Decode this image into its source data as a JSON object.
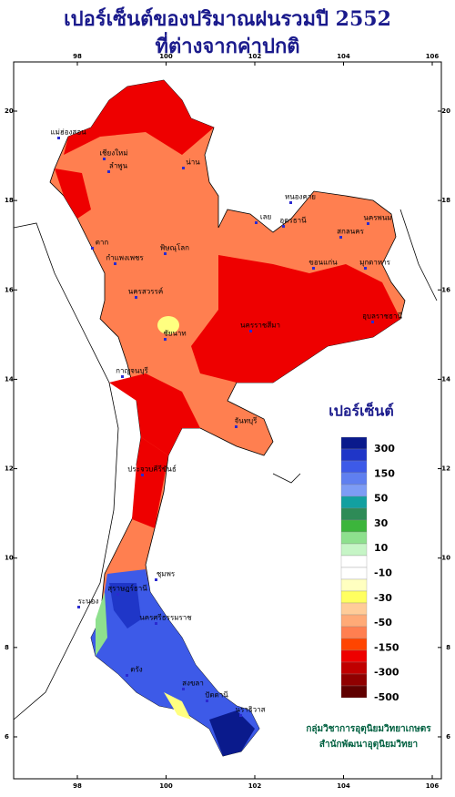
{
  "header": {
    "title": "เปอร์เซ็นต์ของปริมาณฝนรวมปี  2552",
    "subtitle": "ที่ต่างจากค่าปกติ"
  },
  "map": {
    "lon_ticks": [
      98,
      100,
      102,
      104,
      106
    ],
    "lat_ticks": [
      6,
      8,
      10,
      12,
      14,
      16,
      18,
      20
    ],
    "provinces": [
      "แม่ฮ่องสอน",
      "เชียงใหม่",
      "ลำพูน",
      "น่าน",
      "หนองคาย",
      "เลย",
      "อุดรธานี",
      "สกลนคร",
      "นครพนม",
      "ตาก",
      "กำแพงเพชร",
      "พิษณุโลก",
      "ขอนแก่น",
      "มุกดาหาร",
      "นครสวรรค์",
      "ชัยนาท",
      "นครราชสีมา",
      "อุบลราชธานี",
      "กาญจนบุรี",
      "จันทบุรี",
      "ประจวบคีรีขันธ์",
      "ชุมพร",
      "ระนอง",
      "สุราษฎร์ธานี",
      "นครศรีธรรมราช",
      "ตรัง",
      "สงขลา",
      "ปัตตานี",
      "นราธิวาส"
    ],
    "legend": {
      "title": "เปอร์เซ็นต์",
      "levels": [
        300,
        150,
        50,
        30,
        10,
        -10,
        -30,
        -50,
        -150,
        -300,
        -500
      ],
      "colors": [
        "#0a1a8c",
        "#1f36c8",
        "#3d5ae8",
        "#5f7ff0",
        "#7d9cf5",
        "#12a0a0",
        "#2e8b57",
        "#3cb53c",
        "#8ee08e",
        "#c6f5c6",
        "#ffffff",
        "#ffffff",
        "#ffffc0",
        "#ffff60",
        "#ffcc99",
        "#ffaa77",
        "#ff7f50",
        "#ff4500",
        "#ee0000",
        "#c00000",
        "#900000",
        "#600000"
      ]
    }
  },
  "credit": {
    "line1": "กลุ่มวิชาการอุตุนิยมวิทยาเกษตร",
    "line2": "สำนักพัฒนาอุตุนิยมวิทยา"
  }
}
